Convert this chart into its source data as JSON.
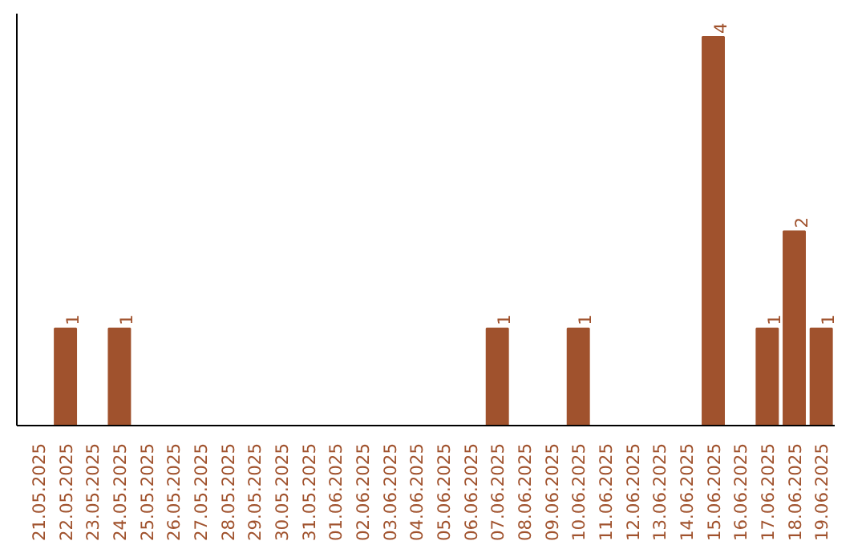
{
  "chart_data": {
    "type": "bar",
    "categories": [
      "21.05.2025",
      "22.05.2025",
      "23.05.2025",
      "24.05.2025",
      "25.05.2025",
      "26.05.2025",
      "27.05.2025",
      "28.05.2025",
      "29.05.2025",
      "30.05.2025",
      "31.05.2025",
      "01.06.2025",
      "02.06.2025",
      "03.06.2025",
      "04.06.2025",
      "05.06.2025",
      "06.06.2025",
      "07.06.2025",
      "08.06.2025",
      "09.06.2025",
      "10.06.2025",
      "11.06.2025",
      "12.06.2025",
      "13.06.2025",
      "14.06.2025",
      "15.06.2025",
      "16.06.2025",
      "17.06.2025",
      "18.06.2025",
      "19.06.2025"
    ],
    "values": [
      0,
      1,
      0,
      1,
      0,
      0,
      0,
      0,
      0,
      0,
      0,
      0,
      0,
      0,
      0,
      0,
      0,
      1,
      0,
      0,
      1,
      0,
      0,
      0,
      0,
      4,
      0,
      1,
      2,
      1
    ],
    "value_labels": [
      null,
      "1",
      null,
      "1",
      null,
      null,
      null,
      null,
      null,
      null,
      null,
      null,
      null,
      null,
      null,
      null,
      null,
      "1",
      null,
      null,
      "1",
      null,
      null,
      null,
      null,
      "4",
      null,
      "1",
      "2",
      "1"
    ],
    "color": "#a0522d",
    "grid": false,
    "tick_labels": "x"
  }
}
